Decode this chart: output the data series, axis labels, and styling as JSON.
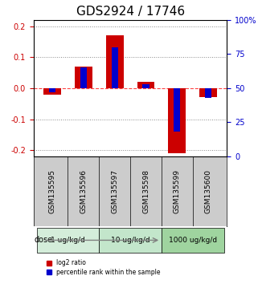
{
  "title": "GDS2924 / 17746",
  "samples": [
    "GSM135595",
    "GSM135596",
    "GSM135597",
    "GSM135598",
    "GSM135599",
    "GSM135600"
  ],
  "log2_ratio": [
    -0.02,
    0.07,
    0.17,
    0.02,
    -0.21,
    -0.03
  ],
  "percentile_rank": [
    47,
    65,
    80,
    53,
    18,
    43
  ],
  "ylim": [
    -0.22,
    0.22
  ],
  "yticks_left": [
    -0.2,
    -0.1,
    0.0,
    0.1,
    0.2
  ],
  "yticks_right": [
    0,
    25,
    50,
    75,
    100
  ],
  "yticks_right_labels": [
    "0",
    "25",
    "50",
    "75",
    "100%"
  ],
  "dose_groups": [
    {
      "label": "1 ug/kg/d",
      "start": 0,
      "end": 2,
      "color": "#d4edda"
    },
    {
      "label": "10 ug/kg/d",
      "start": 2,
      "end": 4,
      "color": "#c3e6cb"
    },
    {
      "label": "1000 ug/kg/d",
      "start": 4,
      "end": 6,
      "color": "#9fd49f"
    }
  ],
  "bar_width": 0.35,
  "red_color": "#cc0000",
  "blue_color": "#0000cc",
  "grid_color": "#888888",
  "zero_line_color": "#ff4444",
  "background_color": "#ffffff",
  "plot_bg_color": "#ffffff",
  "sample_box_color": "#cccccc",
  "title_fontsize": 11,
  "tick_fontsize": 7,
  "label_fontsize": 8
}
